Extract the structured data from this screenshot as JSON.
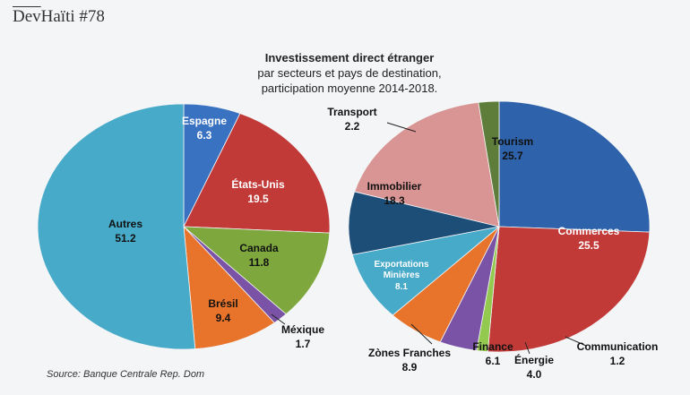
{
  "brand": {
    "name_overline": "Dev",
    "name_rest": "Haïti",
    "issue": "#78"
  },
  "title": "Investissement direct étranger",
  "subtitle_line1": "par secteurs et pays de destination,",
  "subtitle_line2": "participation moyenne 2014-2018.",
  "source": "Source: Banque Centrale Rep. Dom",
  "colors": {
    "blue": "#3a72c2",
    "red": "#c23a38",
    "green": "#7ea83d",
    "purple": "#7a52a6",
    "orange": "#e8742b",
    "teal": "#47aac9",
    "navy": "#1d4e78",
    "pink": "#d99494",
    "olive": "#5e7d3a",
    "darkblue": "#2e62ab",
    "lightgreen": "#92c94e"
  },
  "chart_data": [
    {
      "type": "pie",
      "title": "Investissement direct étranger par pays de destination",
      "slices": [
        {
          "label": "Espagne",
          "value": 6.3,
          "color": "#3a72c2"
        },
        {
          "label": "États-Unis",
          "value": 19.5,
          "color": "#c23a38"
        },
        {
          "label": "Canada",
          "value": 11.8,
          "color": "#7ea83d"
        },
        {
          "label": "Méxique",
          "value": 1.7,
          "color": "#7a52a6"
        },
        {
          "label": "Brésil",
          "value": 9.4,
          "color": "#e8742b"
        },
        {
          "label": "Autres",
          "value": 51.2,
          "color": "#47aac9"
        }
      ]
    },
    {
      "type": "pie",
      "title": "Investissement direct étranger par secteurs",
      "slices": [
        {
          "label": "Tourism",
          "value": 25.7,
          "color": "#2e62ab"
        },
        {
          "label": "Commerces",
          "value": 25.5,
          "color": "#c23a38"
        },
        {
          "label": "Communication",
          "value": 1.2,
          "color": "#92c94e"
        },
        {
          "label": "Énergie",
          "value": 4.0,
          "color": "#7a52a6"
        },
        {
          "label": "Finance",
          "value": 6.1,
          "color": "#e8742b"
        },
        {
          "label": "Zònes Franches",
          "value": 8.9,
          "color": "#47aac9"
        },
        {
          "label": "Exportations Minières",
          "value": 8.1,
          "color": "#1d4e78"
        },
        {
          "label": "Immobilier",
          "value": 18.3,
          "color": "#d99494"
        },
        {
          "label": "Transport",
          "value": 2.2,
          "color": "#5e7d3a"
        }
      ]
    }
  ]
}
